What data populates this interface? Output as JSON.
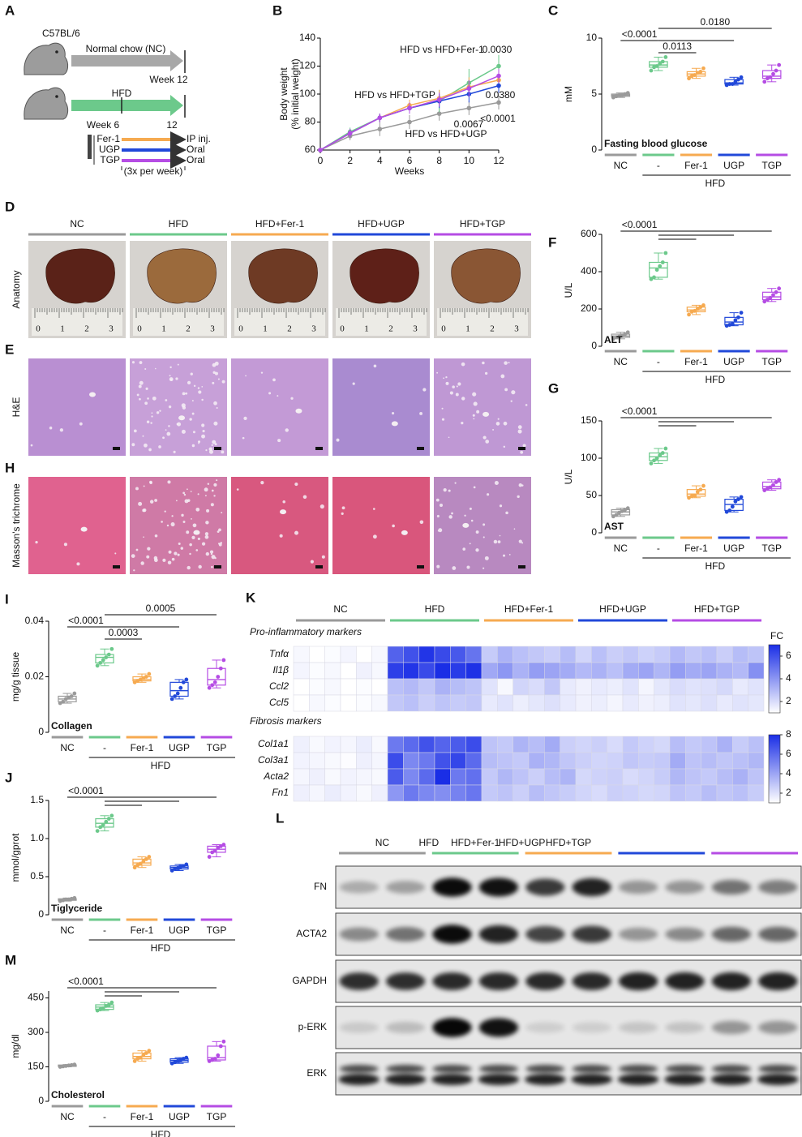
{
  "panel_labels": [
    "A",
    "B",
    "C",
    "D",
    "E",
    "F",
    "G",
    "H",
    "I",
    "J",
    "K",
    "L",
    "M"
  ],
  "group_colors": [
    "#9a9a9a",
    "#6cc98b",
    "#f6aa50",
    "#2148d9",
    "#b54ce4"
  ],
  "scheme": {
    "strain": "C57BL/6",
    "nc_diet": "Normal chow (NC)",
    "nc_end": "Week 12",
    "hfd_diet": "HFD",
    "hfd_mid": "Week 6",
    "hfd_end": "12",
    "treatments": [
      "Fer-1",
      "UGP",
      "TGP"
    ],
    "routes": [
      "IP inj.",
      "Oral",
      "Oral"
    ],
    "frequency": "(3x per week)"
  },
  "tissue": {
    "groups": [
      "NC",
      "HFD",
      "HFD+Fer-1",
      "HFD+UGP",
      "HFD+TGP"
    ],
    "rows": [
      "Anatomy",
      "H&E",
      "Masson's trichrome"
    ],
    "ruler": [
      "0",
      "1",
      "2",
      "3"
    ]
  },
  "chart_data": [
    {
      "type": "line",
      "x": [
        0,
        2,
        4,
        6,
        8,
        10,
        12
      ],
      "xlim": [
        0,
        12
      ],
      "xticks": [
        0,
        2,
        4,
        6,
        8,
        10,
        12
      ],
      "xlabel": "Weeks",
      "ylabel": [
        "Body weight",
        "(% initial weight)"
      ],
      "ylim": [
        60,
        140
      ],
      "yticks": [
        60,
        80,
        100,
        120,
        140
      ],
      "series": [
        {
          "color": "#9a9a9a",
          "values": [
            60,
            70,
            75,
            80,
            86,
            90,
            94
          ],
          "errors": [
            0,
            3,
            5,
            5,
            5,
            5,
            5
          ]
        },
        {
          "color": "#6cc98b",
          "values": [
            60,
            73,
            83,
            90,
            95,
            108,
            120
          ],
          "errors": [
            0,
            3,
            3,
            4,
            8,
            10,
            8
          ]
        },
        {
          "color": "#f6aa50",
          "values": [
            60,
            72,
            83,
            92,
            97,
            105,
            110
          ],
          "errors": [
            0,
            3,
            3,
            4,
            6,
            7,
            6
          ]
        },
        {
          "color": "#2148d9",
          "values": [
            60,
            72,
            83,
            90,
            95,
            100,
            106
          ],
          "errors": [
            0,
            3,
            3,
            4,
            5,
            6,
            5
          ]
        },
        {
          "color": "#b54ce4",
          "values": [
            60,
            72,
            83,
            90,
            96,
            104,
            113
          ],
          "errors": [
            0,
            3,
            3,
            4,
            5,
            6,
            5
          ]
        }
      ],
      "annotations": [
        "HFD vs HFD+Fer-1",
        "0.0030",
        "HFD vs HFD+TGP",
        "0.0380",
        "0.0067",
        "<0.0001",
        "HFD vs HFD+UGP"
      ]
    },
    {
      "type": "box",
      "label": "Fasting blood glucose",
      "ylabel": "mM",
      "ylim": [
        0,
        10
      ],
      "yticks": [
        0,
        5,
        10
      ],
      "categories": [
        "NC",
        "-",
        "Fer-1",
        "UGP",
        "TGP"
      ],
      "group_label": "HFD",
      "brackets": [
        "<0.0001",
        "0.0113",
        "0.0180"
      ],
      "boxes": [
        {
          "min": 4.7,
          "q1": 4.8,
          "median": 4.9,
          "q3": 5.0,
          "max": 5.1,
          "points": [
            4.7,
            4.8,
            4.9,
            4.9,
            5.0,
            5.1
          ]
        },
        {
          "min": 7.1,
          "q1": 7.4,
          "median": 7.6,
          "q3": 7.9,
          "max": 8.3,
          "points": [
            7.1,
            7.4,
            7.5,
            7.7,
            7.9,
            8.3
          ]
        },
        {
          "min": 6.4,
          "q1": 6.6,
          "median": 6.8,
          "q3": 7.0,
          "max": 7.3,
          "points": [
            6.4,
            6.6,
            6.7,
            6.9,
            7.0,
            7.3
          ]
        },
        {
          "min": 5.8,
          "q1": 5.9,
          "median": 6.0,
          "q3": 6.3,
          "max": 6.5,
          "points": [
            5.8,
            5.9,
            5.9,
            6.1,
            6.3,
            6.5
          ]
        },
        {
          "min": 6.1,
          "q1": 6.4,
          "median": 6.6,
          "q3": 7.1,
          "max": 7.6,
          "points": [
            6.1,
            6.4,
            6.5,
            6.8,
            7.1,
            7.6
          ]
        }
      ]
    },
    {
      "type": "box",
      "label": "ALT",
      "ylabel": "U/L",
      "ylim": [
        0,
        600
      ],
      "yticks": [
        0,
        200,
        400,
        600
      ],
      "categories": [
        "NC",
        "-",
        "Fer-1",
        "UGP",
        "TGP"
      ],
      "group_label": "HFD",
      "brackets": [
        "<0.0001"
      ],
      "boxes": [
        {
          "min": 40,
          "q1": 48,
          "median": 55,
          "q3": 65,
          "max": 75,
          "points": [
            40,
            48,
            52,
            58,
            65,
            75
          ]
        },
        {
          "min": 360,
          "q1": 370,
          "median": 420,
          "q3": 450,
          "max": 500,
          "points": [
            360,
            370,
            410,
            430,
            450,
            500
          ]
        },
        {
          "min": 170,
          "q1": 185,
          "median": 195,
          "q3": 210,
          "max": 220,
          "points": [
            170,
            185,
            190,
            200,
            210,
            220
          ]
        },
        {
          "min": 110,
          "q1": 115,
          "median": 130,
          "q3": 155,
          "max": 180,
          "points": [
            110,
            115,
            120,
            140,
            155,
            180
          ]
        },
        {
          "min": 240,
          "q1": 250,
          "median": 265,
          "q3": 290,
          "max": 310,
          "points": [
            240,
            250,
            260,
            275,
            290,
            310
          ]
        }
      ]
    },
    {
      "type": "box",
      "label": "AST",
      "ylabel": "U/L",
      "ylim": [
        0,
        150
      ],
      "yticks": [
        0,
        50,
        100,
        150
      ],
      "categories": [
        "NC",
        "-",
        "Fer-1",
        "UGP",
        "TGP"
      ],
      "group_label": "HFD",
      "brackets": [
        "<0.0001"
      ],
      "boxes": [
        {
          "min": 22,
          "q1": 24,
          "median": 28,
          "q3": 31,
          "max": 33,
          "points": [
            22,
            24,
            27,
            29,
            31,
            33
          ]
        },
        {
          "min": 93,
          "q1": 97,
          "median": 102,
          "q3": 107,
          "max": 113,
          "points": [
            93,
            97,
            100,
            104,
            107,
            113
          ]
        },
        {
          "min": 47,
          "q1": 49,
          "median": 52,
          "q3": 58,
          "max": 63,
          "points": [
            47,
            49,
            50,
            55,
            58,
            63
          ]
        },
        {
          "min": 28,
          "q1": 30,
          "median": 38,
          "q3": 45,
          "max": 48,
          "points": [
            28,
            30,
            35,
            42,
            45,
            48
          ]
        },
        {
          "min": 57,
          "q1": 59,
          "median": 62,
          "q3": 68,
          "max": 71,
          "points": [
            57,
            59,
            61,
            64,
            68,
            71
          ]
        }
      ]
    },
    {
      "type": "box",
      "label": "Collagen",
      "ylabel": "mg/g tissue",
      "ylim": [
        0,
        0.04
      ],
      "yticks": [
        0,
        0.02,
        0.04
      ],
      "categories": [
        "NC",
        "-",
        "Fer-1",
        "UGP",
        "TGP"
      ],
      "group_label": "HFD",
      "brackets": [
        "<0.0001",
        "0.0003",
        "0.0005"
      ],
      "boxes": [
        {
          "min": 0.0105,
          "q1": 0.011,
          "median": 0.012,
          "q3": 0.013,
          "max": 0.014,
          "points": [
            0.0105,
            0.011,
            0.012,
            0.0125,
            0.013,
            0.014
          ]
        },
        {
          "min": 0.024,
          "q1": 0.025,
          "median": 0.027,
          "q3": 0.028,
          "max": 0.03,
          "points": [
            0.024,
            0.025,
            0.026,
            0.027,
            0.028,
            0.03
          ]
        },
        {
          "min": 0.018,
          "q1": 0.0185,
          "median": 0.019,
          "q3": 0.02,
          "max": 0.021,
          "points": [
            0.018,
            0.0185,
            0.019,
            0.0195,
            0.02,
            0.021
          ]
        },
        {
          "min": 0.012,
          "q1": 0.013,
          "median": 0.015,
          "q3": 0.018,
          "max": 0.019,
          "points": [
            0.012,
            0.013,
            0.014,
            0.016,
            0.018,
            0.019
          ]
        },
        {
          "min": 0.016,
          "q1": 0.017,
          "median": 0.019,
          "q3": 0.023,
          "max": 0.026,
          "points": [
            0.016,
            0.017,
            0.018,
            0.02,
            0.023,
            0.026
          ]
        }
      ]
    },
    {
      "type": "box",
      "label": "Tiglyceride",
      "ylabel": "mmol/gprot",
      "ylim": [
        0,
        1.5
      ],
      "yticks": [
        0,
        0.5,
        {
          "value": 1,
          "label": "1.0"
        },
        1.5
      ],
      "categories": [
        "NC",
        "-",
        "Fer-1",
        "UGP",
        "TGP"
      ],
      "group_label": "HFD",
      "brackets": [
        "<0.0001"
      ],
      "boxes": [
        {
          "min": 0.18,
          "q1": 0.19,
          "median": 0.2,
          "q3": 0.21,
          "max": 0.22,
          "points": [
            0.18,
            0.19,
            0.2,
            0.2,
            0.21,
            0.22
          ]
        },
        {
          "min": 1.1,
          "q1": 1.15,
          "median": 1.2,
          "q3": 1.26,
          "max": 1.3,
          "points": [
            1.1,
            1.15,
            1.18,
            1.22,
            1.26,
            1.3
          ]
        },
        {
          "min": 0.62,
          "q1": 0.65,
          "median": 0.68,
          "q3": 0.73,
          "max": 0.76,
          "points": [
            0.62,
            0.65,
            0.67,
            0.7,
            0.73,
            0.76
          ]
        },
        {
          "min": 0.58,
          "q1": 0.6,
          "median": 0.62,
          "q3": 0.64,
          "max": 0.66,
          "points": [
            0.58,
            0.6,
            0.61,
            0.63,
            0.64,
            0.66
          ]
        },
        {
          "min": 0.76,
          "q1": 0.82,
          "median": 0.86,
          "q3": 0.9,
          "max": 0.92,
          "points": [
            0.76,
            0.82,
            0.84,
            0.88,
            0.9,
            0.92
          ]
        }
      ]
    },
    {
      "type": "box",
      "label": "Cholesterol",
      "ylabel": "mg/dl",
      "ylim": [
        0,
        480
      ],
      "yticks": [
        0,
        150,
        300,
        450
      ],
      "categories": [
        "NC",
        "-",
        "Fer-1",
        "UGP",
        "TGP"
      ],
      "group_label": "HFD",
      "brackets": [
        "<0.0001"
      ],
      "boxes": [
        {
          "min": 150,
          "q1": 152,
          "median": 155,
          "q3": 158,
          "max": 160,
          "points": [
            150,
            152,
            154,
            156,
            158,
            160
          ]
        },
        {
          "min": 395,
          "q1": 400,
          "median": 410,
          "q3": 420,
          "max": 430,
          "points": [
            395,
            400,
            405,
            415,
            420,
            430
          ]
        },
        {
          "min": 175,
          "q1": 185,
          "median": 195,
          "q3": 210,
          "max": 220,
          "points": [
            175,
            185,
            190,
            200,
            210,
            220
          ]
        },
        {
          "min": 165,
          "q1": 170,
          "median": 178,
          "q3": 185,
          "max": 190,
          "points": [
            165,
            170,
            175,
            180,
            185,
            190
          ]
        },
        {
          "min": 175,
          "q1": 180,
          "median": 190,
          "q3": 240,
          "max": 260,
          "points": [
            175,
            180,
            185,
            200,
            240,
            260
          ]
        }
      ]
    },
    {
      "type": "heatmap",
      "groups": [
        "NC",
        "HFD",
        "HFD+Fer-1",
        "HFD+UGP",
        "HFD+TGP"
      ],
      "low_color": "#ffffff",
      "high_color": "#1a2ee6",
      "sections": [
        {
          "title": "Pro-inflammatory markers",
          "colorbar_title": "FC",
          "zlim": [
            1,
            7
          ],
          "zticks": [
            2,
            4,
            6
          ],
          "rows": [
            "Tnfα",
            "Il1β",
            "Ccl2",
            "Ccl5"
          ],
          "values": [
            [
              1.2,
              1.0,
              1.1,
              1.3,
              1.0,
              1.2,
              5.5,
              6.0,
              6.8,
              6.2,
              5.8,
              5.0,
              2.5,
              3.2,
              2.8,
              2.6,
              2.4,
              2.9,
              2.2,
              2.8,
              2.4,
              2.6,
              2.3,
              2.5,
              3.0,
              2.6,
              2.8,
              2.4,
              2.9,
              2.7
            ],
            [
              1.3,
              1.1,
              1.2,
              1.0,
              1.4,
              1.2,
              6.5,
              6.8,
              6.2,
              7.0,
              6.6,
              6.9,
              3.5,
              4.0,
              3.2,
              3.8,
              3.6,
              3.4,
              3.0,
              3.2,
              2.8,
              3.4,
              3.6,
              3.1,
              3.8,
              3.4,
              3.6,
              3.2,
              3.0,
              4.2
            ],
            [
              1.0,
              1.1,
              1.2,
              1.0,
              1.1,
              1.0,
              2.8,
              3.0,
              2.6,
              3.2,
              2.9,
              2.7,
              1.8,
              1.2,
              2.2,
              2.0,
              2.6,
              1.6,
              1.4,
              1.6,
              1.5,
              1.8,
              1.3,
              1.7,
              2.0,
              1.8,
              1.9,
              2.1,
              1.6,
              1.8
            ],
            [
              1.0,
              1.2,
              1.1,
              1.0,
              1.1,
              1.2,
              2.6,
              2.8,
              2.4,
              2.7,
              2.5,
              2.6,
              1.6,
              1.8,
              1.5,
              1.7,
              1.9,
              1.6,
              1.4,
              1.5,
              1.3,
              1.6,
              1.4,
              1.5,
              1.8,
              1.7,
              1.9,
              1.6,
              1.8,
              1.7
            ]
          ]
        },
        {
          "title": "Fibrosis markers",
          "zlim": [
            1,
            8
          ],
          "zticks": [
            2,
            4,
            6,
            8
          ],
          "rows": [
            "Col1a1",
            "Col3a1",
            "Acta2",
            "Fn1"
          ],
          "values": [
            [
              1.5,
              1.2,
              1.4,
              1.3,
              1.6,
              1.2,
              5.5,
              6.0,
              6.8,
              6.2,
              6.5,
              7.0,
              3.0,
              2.8,
              3.5,
              3.2,
              3.8,
              2.6,
              2.4,
              2.6,
              2.2,
              2.8,
              2.5,
              2.3,
              3.2,
              2.8,
              3.0,
              3.6,
              2.7,
              3.1
            ],
            [
              1.4,
              1.3,
              1.2,
              1.1,
              1.5,
              1.3,
              7.0,
              5.0,
              5.5,
              6.8,
              7.2,
              6.0,
              3.2,
              3.0,
              2.8,
              3.6,
              3.4,
              2.9,
              2.6,
              2.4,
              2.5,
              2.9,
              2.7,
              2.8,
              3.8,
              3.0,
              3.2,
              2.9,
              3.1,
              3.4
            ],
            [
              1.3,
              1.5,
              1.2,
              1.4,
              1.3,
              1.2,
              6.5,
              5.0,
              6.0,
              8.0,
              5.5,
              5.8,
              2.8,
              3.4,
              3.0,
              2.6,
              3.2,
              3.5,
              2.3,
              2.5,
              2.6,
              2.2,
              2.4,
              2.7,
              3.4,
              3.0,
              2.8,
              3.2,
              3.6,
              3.0
            ],
            [
              1.5,
              1.3,
              1.6,
              1.4,
              1.2,
              1.5,
              4.5,
              5.5,
              5.0,
              4.8,
              5.2,
              5.6,
              2.8,
              3.0,
              2.6,
              3.2,
              2.9,
              2.7,
              2.4,
              2.2,
              2.6,
              2.5,
              2.3,
              2.4,
              3.0,
              2.8,
              3.2,
              2.9,
              3.1,
              2.7
            ]
          ]
        }
      ]
    }
  ],
  "blot": {
    "groups": [
      "NC",
      "HFD",
      "HFD+Fer-1",
      "HFD+UGP",
      "HFD+TGP"
    ],
    "proteins": [
      "FN",
      "ACTA2",
      "GAPDH",
      "p-ERK",
      "ERK"
    ]
  }
}
